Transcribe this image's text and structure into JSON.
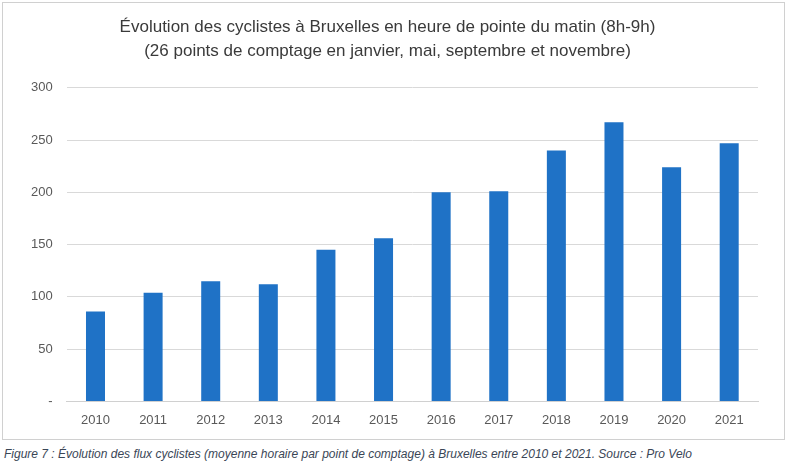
{
  "chart_data": {
    "type": "bar",
    "title": "Évolution des cyclistes à Bruxelles en heure de pointe du matin (8h-9h)",
    "subtitle": "(26 points de comptage en janvier, mai, septembre et novembre)",
    "caption": "Figure 7 : Évolution des flux cyclistes (moyenne horaire par point de comptage) à Bruxelles entre 2010 et 2021. Source : Pro Velo",
    "categories": [
      "2010",
      "2011",
      "2012",
      "2013",
      "2014",
      "2015",
      "2016",
      "2017",
      "2018",
      "2019",
      "2020",
      "2021"
    ],
    "values": [
      86,
      104,
      115,
      112,
      145,
      156,
      200,
      201,
      240,
      267,
      224,
      247
    ],
    "color": "#1f72c6",
    "ylim": [
      0,
      300
    ],
    "yticks": [
      {
        "value": 0,
        "label": "-"
      },
      50,
      100,
      150,
      200,
      250,
      300
    ],
    "grid": true
  }
}
